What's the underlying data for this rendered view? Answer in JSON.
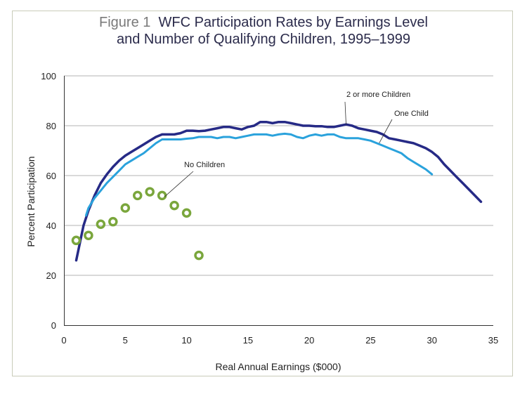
{
  "title": {
    "figure_label": "Figure 1",
    "line1": "WFC Participation Rates by Earnings Level",
    "line2": "and Number of Qualifying Children, 1995–1999"
  },
  "chart_data": {
    "type": "line",
    "xlabel": "Real Annual Earnings ($000)",
    "ylabel": "Percent Participation",
    "xlim": [
      0,
      35
    ],
    "ylim": [
      0,
      100
    ],
    "xticks": [
      0,
      5,
      10,
      15,
      20,
      25,
      30,
      35
    ],
    "yticks": [
      0,
      20,
      40,
      60,
      80,
      100
    ],
    "grid": "horizontal",
    "series": [
      {
        "name": "2 or more Children",
        "color": "#262a86",
        "style": "line",
        "x": [
          1,
          1.3,
          1.6,
          2,
          2.5,
          3,
          3.5,
          4,
          4.5,
          5,
          5.5,
          6,
          6.5,
          7,
          7.5,
          8,
          8.5,
          9,
          9.5,
          10,
          10.5,
          11,
          11.5,
          12,
          12.5,
          13,
          13.5,
          14,
          14.5,
          15,
          15.5,
          16,
          16.5,
          17,
          17.5,
          18,
          18.5,
          19,
          19.5,
          20,
          20.5,
          21,
          21.5,
          22,
          22.5,
          23,
          23.5,
          24,
          24.5,
          25,
          25.5,
          26,
          26.5,
          27,
          27.5,
          28,
          28.5,
          29,
          29.5,
          30,
          30.5,
          31,
          31.5,
          32,
          32.5,
          33,
          33.5,
          34
        ],
        "y": [
          26,
          33,
          40,
          46,
          52,
          57,
          60.5,
          63.5,
          66,
          68,
          69.5,
          71,
          72.5,
          74,
          75.5,
          76.5,
          76.5,
          76.5,
          77,
          78,
          78,
          77.8,
          78,
          78.5,
          79,
          79.5,
          79.5,
          79,
          78.5,
          79.5,
          80,
          81.5,
          81.5,
          81,
          81.5,
          81.5,
          81,
          80.5,
          80,
          80,
          79.8,
          79.8,
          79.5,
          79.5,
          80,
          80.5,
          80,
          79,
          78.5,
          78,
          77.5,
          76.5,
          75,
          74.5,
          74,
          73.5,
          73,
          72,
          71,
          69.5,
          67.5,
          64.5,
          62,
          59.5,
          57,
          54.5,
          52,
          49.5
        ]
      },
      {
        "name": "One Child",
        "color": "#2aa2dc",
        "style": "line",
        "x": [
          1.8,
          2,
          2.5,
          3,
          3.5,
          4,
          4.5,
          5,
          5.5,
          6,
          6.5,
          7,
          7.5,
          8,
          8.5,
          9,
          9.5,
          10,
          10.5,
          11,
          11.5,
          12,
          12.5,
          13,
          13.5,
          14,
          14.5,
          15,
          15.5,
          16,
          16.5,
          17,
          17.5,
          18,
          18.5,
          19,
          19.5,
          20,
          20.5,
          21,
          21.5,
          22,
          22.5,
          23,
          23.5,
          24,
          24.5,
          25,
          25.5,
          26,
          26.5,
          27,
          27.5,
          28,
          28.5,
          29,
          29.5,
          30
        ],
        "y": [
          44,
          47,
          51,
          54,
          57,
          59.5,
          62,
          64.5,
          66,
          67.5,
          69,
          71,
          73,
          74.5,
          74.5,
          74.5,
          74.5,
          74.8,
          75,
          75.5,
          75.5,
          75.5,
          75,
          75.5,
          75.5,
          75,
          75.5,
          76,
          76.5,
          76.5,
          76.5,
          76,
          76.5,
          76.8,
          76.5,
          75.5,
          75,
          76,
          76.5,
          76,
          76.5,
          76.5,
          75.5,
          75,
          75,
          75,
          74.5,
          74,
          73,
          72,
          71,
          70,
          69,
          67,
          65.5,
          64,
          62.5,
          60.5
        ]
      },
      {
        "name": "No Children",
        "color": "#7aa63c",
        "style": "markers",
        "x": [
          1,
          2,
          3,
          4,
          5,
          6,
          7,
          8,
          9,
          10,
          11
        ],
        "y": [
          34,
          36,
          40.5,
          41.5,
          47,
          52,
          53.5,
          52,
          48,
          45,
          28
        ]
      }
    ],
    "annotations": [
      {
        "text": "2 or more Children",
        "series": 0
      },
      {
        "text": "One Child",
        "series": 1
      },
      {
        "text": "No Children",
        "series": 2
      }
    ]
  }
}
